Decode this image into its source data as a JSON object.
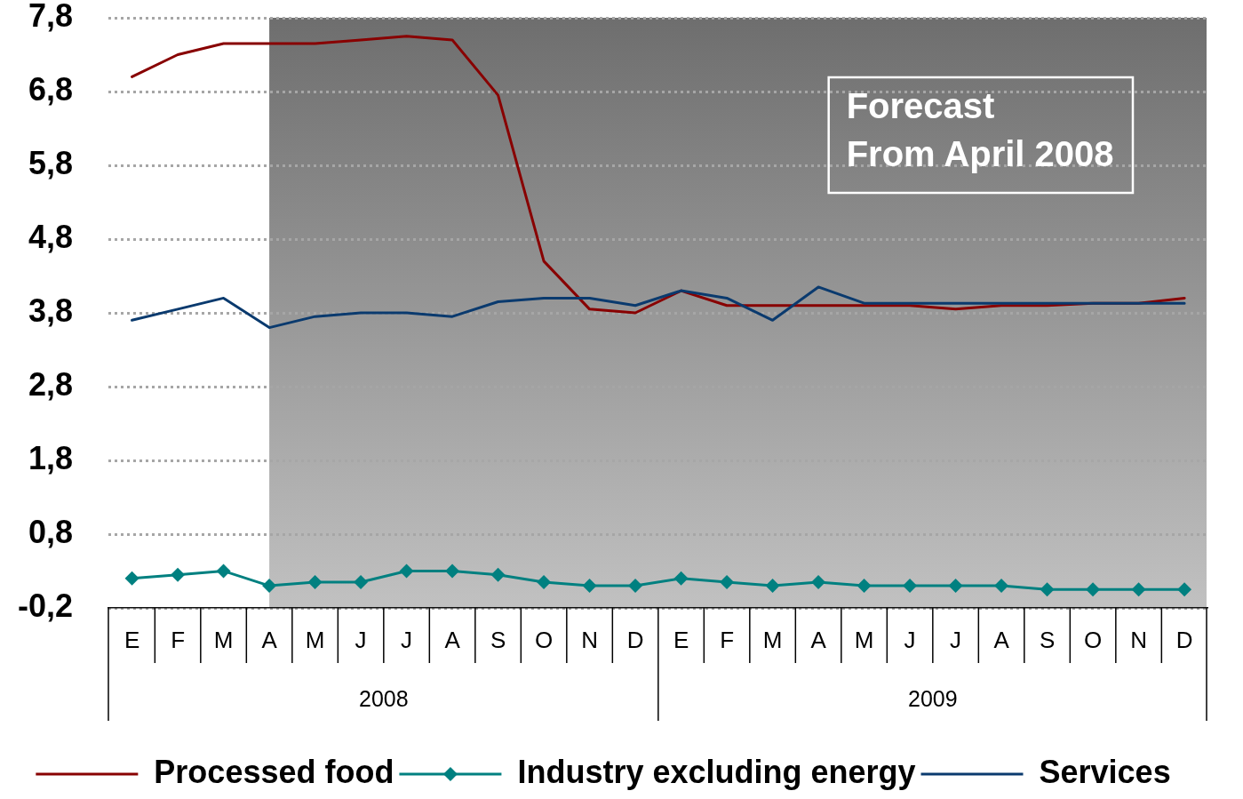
{
  "chart_data": {
    "type": "line",
    "x": [
      "2008-01",
      "2008-02",
      "2008-03",
      "2008-04",
      "2008-05",
      "2008-06",
      "2008-07",
      "2008-08",
      "2008-09",
      "2008-10",
      "2008-11",
      "2008-12",
      "2009-01",
      "2009-02",
      "2009-03",
      "2009-04",
      "2009-05",
      "2009-06",
      "2009-07",
      "2009-08",
      "2009-09",
      "2009-10",
      "2009-11",
      "2009-12"
    ],
    "series": [
      {
        "name": "Processed food",
        "color": "#880000",
        "values": [
          7.0,
          7.3,
          7.45,
          7.45,
          7.45,
          7.5,
          7.55,
          7.5,
          6.75,
          4.5,
          3.85,
          3.8,
          4.1,
          3.9,
          3.9,
          3.9,
          3.9,
          3.9,
          3.85,
          3.9,
          3.9,
          3.93,
          3.93,
          4.0
        ]
      },
      {
        "name": "Industry excluding energy",
        "color": "#008080",
        "marker": "diamond",
        "values": [
          0.2,
          0.25,
          0.3,
          0.1,
          0.15,
          0.15,
          0.3,
          0.3,
          0.25,
          0.15,
          0.1,
          0.1,
          0.2,
          0.15,
          0.1,
          0.15,
          0.1,
          0.1,
          0.1,
          0.1,
          0.05,
          0.05,
          0.05,
          0.05
        ]
      },
      {
        "name": "Services",
        "color": "#0a3a6e",
        "values": [
          3.7,
          3.85,
          4.0,
          3.6,
          3.75,
          3.8,
          3.8,
          3.75,
          3.95,
          4.0,
          4.0,
          3.9,
          4.1,
          4.0,
          3.7,
          4.15,
          3.93,
          3.93,
          3.93,
          3.93,
          3.93,
          3.93,
          3.93,
          3.93
        ]
      }
    ],
    "xlim": [
      "2007-12-16",
      "2009-12-16"
    ],
    "xticks": [
      {
        "value": "2008-06-16",
        "label": "2008"
      },
      {
        "value": "2009-06-16",
        "label": "2009"
      }
    ],
    "ylim": [
      -0.2,
      7.8
    ],
    "yticks": [
      {
        "value": -0.2,
        "label": "-0,2"
      },
      {
        "value": 0.8,
        "label": "0,8"
      },
      {
        "value": 1.8,
        "label": "1,8"
      },
      {
        "value": 2.8,
        "label": "2,8"
      },
      {
        "value": 3.8,
        "label": "3,8"
      },
      {
        "value": 4.8,
        "label": "4,8"
      },
      {
        "value": 5.8,
        "label": "5,8"
      },
      {
        "value": 6.8,
        "label": "6,8"
      },
      {
        "value": 7.8,
        "label": "7,8"
      }
    ],
    "grid": "y",
    "legend": "bottom",
    "marker": "none",
    "line_style": "solid",
    "bands": [
      {
        "axis": "x",
        "from": "2008-04",
        "to": "2009-12-16",
        "label": "Forecast\nFrom April 2008",
        "color": "#6e6e6e"
      }
    ],
    "annotations": [
      "E",
      "F",
      "M",
      "A",
      "M",
      "J",
      "J",
      "A",
      "S",
      "O",
      "N",
      "D",
      "E",
      "F",
      "M",
      "A",
      "M",
      "J",
      "J",
      "A",
      "S",
      "O",
      "N",
      "D"
    ]
  }
}
